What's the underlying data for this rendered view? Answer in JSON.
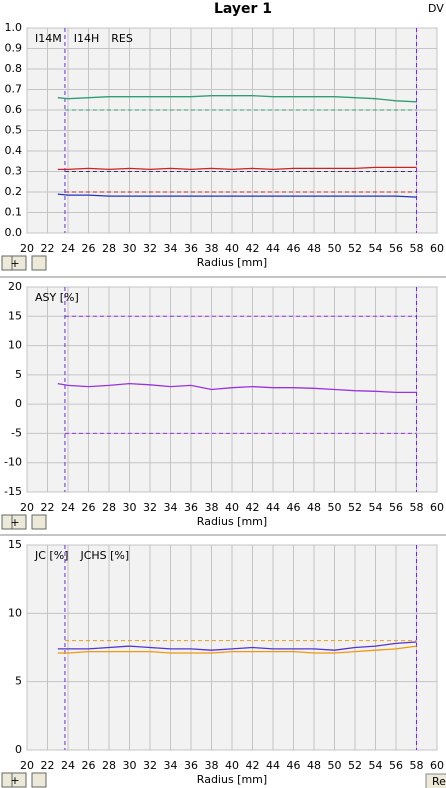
{
  "window": {
    "title": "Layer 1",
    "corner_label": "DV",
    "button": "Re"
  },
  "chart_data": [
    {
      "type": "line",
      "xlabel": "Radius [mm]",
      "x": [
        23,
        24,
        26,
        28,
        30,
        32,
        34,
        36,
        38,
        40,
        42,
        44,
        46,
        48,
        50,
        52,
        54,
        56,
        58
      ],
      "xlim": [
        20,
        60
      ],
      "xticks": [
        20,
        22,
        24,
        26,
        28,
        30,
        32,
        34,
        36,
        38,
        40,
        42,
        44,
        46,
        48,
        50,
        52,
        54,
        56,
        58,
        60
      ],
      "ylim": [
        0,
        1
      ],
      "yticks": [
        {
          "value": 0,
          "label": "0.0"
        },
        0.1,
        0.2,
        0.3,
        0.4,
        0.5,
        0.6,
        0.7,
        0.8,
        0.9,
        {
          "value": 1,
          "label": "1.0"
        }
      ],
      "grid": true,
      "series": [
        {
          "name": "I14M",
          "color": "#2e9e73",
          "values": [
            0.66,
            0.655,
            0.66,
            0.665,
            0.665,
            0.665,
            0.665,
            0.665,
            0.67,
            0.67,
            0.67,
            0.665,
            0.665,
            0.665,
            0.665,
            0.66,
            0.655,
            0.645,
            0.64
          ]
        },
        {
          "name": "I14H",
          "color": "#2233bb",
          "values": [
            0.19,
            0.185,
            0.185,
            0.18,
            0.18,
            0.18,
            0.18,
            0.18,
            0.18,
            0.18,
            0.18,
            0.18,
            0.18,
            0.18,
            0.18,
            0.18,
            0.18,
            0.18,
            0.175
          ]
        },
        {
          "name": "RES",
          "color": "#cc2222",
          "values": [
            0.31,
            0.31,
            0.315,
            0.31,
            0.315,
            0.31,
            0.315,
            0.31,
            0.315,
            0.31,
            0.315,
            0.31,
            0.315,
            0.315,
            0.315,
            0.315,
            0.32,
            0.32,
            0.32
          ]
        }
      ],
      "hlines": [
        {
          "value": 0.6,
          "color": "#2e9e73"
        },
        {
          "value": 0.3,
          "color": "#333366"
        },
        {
          "value": 0.2,
          "color": "#cc2222"
        }
      ],
      "vlines": [
        23.7,
        58
      ],
      "vline_color": "#6633cc"
    },
    {
      "type": "line",
      "xlabel": "Radius [mm]",
      "x": [
        23,
        24,
        26,
        28,
        30,
        32,
        34,
        36,
        38,
        40,
        42,
        44,
        46,
        48,
        50,
        52,
        54,
        56,
        58
      ],
      "xlim": [
        20,
        60
      ],
      "xticks": [
        20,
        22,
        24,
        26,
        28,
        30,
        32,
        34,
        36,
        38,
        40,
        42,
        44,
        46,
        48,
        50,
        52,
        54,
        56,
        58,
        60
      ],
      "ylim": [
        -15,
        20
      ],
      "yticks": [
        -15,
        -10,
        -5,
        0,
        5,
        10,
        15,
        20
      ],
      "grid": true,
      "series": [
        {
          "name": "ASY [%]",
          "color": "#9933dd",
          "values": [
            3.5,
            3.2,
            3.0,
            3.2,
            3.5,
            3.3,
            3.0,
            3.2,
            2.5,
            2.8,
            3.0,
            2.8,
            2.8,
            2.7,
            2.5,
            2.3,
            2.2,
            2.0,
            2.0
          ]
        }
      ],
      "hlines": [
        {
          "value": 15,
          "color": "#9933dd"
        },
        {
          "value": -5,
          "color": "#9933dd"
        }
      ],
      "vlines": [
        23.7,
        58
      ],
      "vline_color": "#6633cc"
    },
    {
      "type": "line",
      "xlabel": "Radius [mm]",
      "x": [
        23,
        24,
        26,
        28,
        30,
        32,
        34,
        36,
        38,
        40,
        42,
        44,
        46,
        48,
        50,
        52,
        54,
        56,
        58
      ],
      "xlim": [
        20,
        60
      ],
      "xticks": [
        20,
        22,
        24,
        26,
        28,
        30,
        32,
        34,
        36,
        38,
        40,
        42,
        44,
        46,
        48,
        50,
        52,
        54,
        56,
        58,
        60
      ],
      "ylim": [
        0,
        15
      ],
      "yticks": [
        0,
        5,
        10,
        15
      ],
      "grid": true,
      "series": [
        {
          "name": "JC [%]",
          "color": "#ee9911",
          "values": [
            7.1,
            7.1,
            7.2,
            7.2,
            7.2,
            7.2,
            7.1,
            7.1,
            7.1,
            7.2,
            7.2,
            7.2,
            7.2,
            7.1,
            7.1,
            7.2,
            7.3,
            7.4,
            7.6
          ]
        },
        {
          "name": "JCHS [%]",
          "color": "#5533cc",
          "values": [
            7.4,
            7.4,
            7.4,
            7.5,
            7.6,
            7.5,
            7.4,
            7.4,
            7.3,
            7.4,
            7.5,
            7.4,
            7.4,
            7.4,
            7.3,
            7.5,
            7.6,
            7.8,
            7.9
          ]
        }
      ],
      "hlines": [
        {
          "value": 8,
          "color": "#ee9911"
        }
      ],
      "vlines": [
        23.7,
        58
      ],
      "vline_color": "#6633cc"
    }
  ]
}
